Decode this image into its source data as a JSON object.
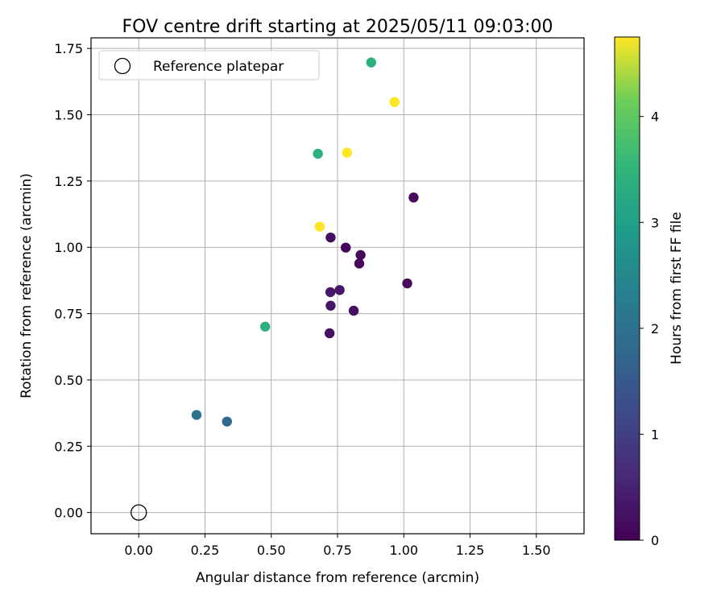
{
  "chart_data": {
    "type": "scatter",
    "title": "FOV centre drift starting at 2025/05/11 09:03:00",
    "xlabel": "Angular distance from reference (arcmin)",
    "ylabel": "Rotation from reference (arcmin)",
    "xlim": [
      -0.18,
      1.68
    ],
    "ylim": [
      -0.08,
      1.79
    ],
    "x_ticks": [
      "0.00",
      "0.25",
      "0.50",
      "0.75",
      "1.00",
      "1.25",
      "1.50"
    ],
    "y_ticks": [
      "0.00",
      "0.25",
      "0.50",
      "0.75",
      "1.00",
      "1.25",
      "1.50",
      "1.75"
    ],
    "x_tick_values": [
      0,
      0.25,
      0.5,
      0.75,
      1.0,
      1.25,
      1.5
    ],
    "y_tick_values": [
      0,
      0.25,
      0.5,
      0.75,
      1.0,
      1.25,
      1.5,
      1.75
    ],
    "grid": true,
    "legend": {
      "position": "top-left",
      "entries": [
        "Reference platepar"
      ]
    },
    "reference_point": {
      "x": 0.0,
      "y": 0.0
    },
    "colorbar": {
      "label": "Hours from first FF file",
      "colormap": "viridis",
      "range": [
        0,
        4.75
      ],
      "ticks": [
        "0",
        "1",
        "2",
        "3",
        "4"
      ],
      "tick_values": [
        0,
        1,
        2,
        3,
        4
      ]
    },
    "points": [
      {
        "x": 0.877,
        "y": 1.697,
        "hours": 3.0
      },
      {
        "x": 0.965,
        "y": 1.548,
        "hours": 4.75
      },
      {
        "x": 0.676,
        "y": 1.353,
        "hours": 3.0
      },
      {
        "x": 0.786,
        "y": 1.357,
        "hours": 4.75
      },
      {
        "x": 1.037,
        "y": 1.188,
        "hours": 0.1
      },
      {
        "x": 0.683,
        "y": 1.078,
        "hours": 4.75
      },
      {
        "x": 0.724,
        "y": 1.037,
        "hours": 0.2
      },
      {
        "x": 0.781,
        "y": 0.999,
        "hours": 0.1
      },
      {
        "x": 0.837,
        "y": 0.971,
        "hours": 0.1
      },
      {
        "x": 0.832,
        "y": 0.939,
        "hours": 0.1
      },
      {
        "x": 1.013,
        "y": 0.864,
        "hours": 0.1
      },
      {
        "x": 0.723,
        "y": 0.831,
        "hours": 0.3
      },
      {
        "x": 0.758,
        "y": 0.839,
        "hours": 0.3
      },
      {
        "x": 0.724,
        "y": 0.78,
        "hours": 0.3
      },
      {
        "x": 0.811,
        "y": 0.761,
        "hours": 0.2
      },
      {
        "x": 0.72,
        "y": 0.676,
        "hours": 0.2
      },
      {
        "x": 0.477,
        "y": 0.701,
        "hours": 3.0
      },
      {
        "x": 0.218,
        "y": 0.368,
        "hours": 1.8
      },
      {
        "x": 0.333,
        "y": 0.343,
        "hours": 1.6
      }
    ]
  }
}
